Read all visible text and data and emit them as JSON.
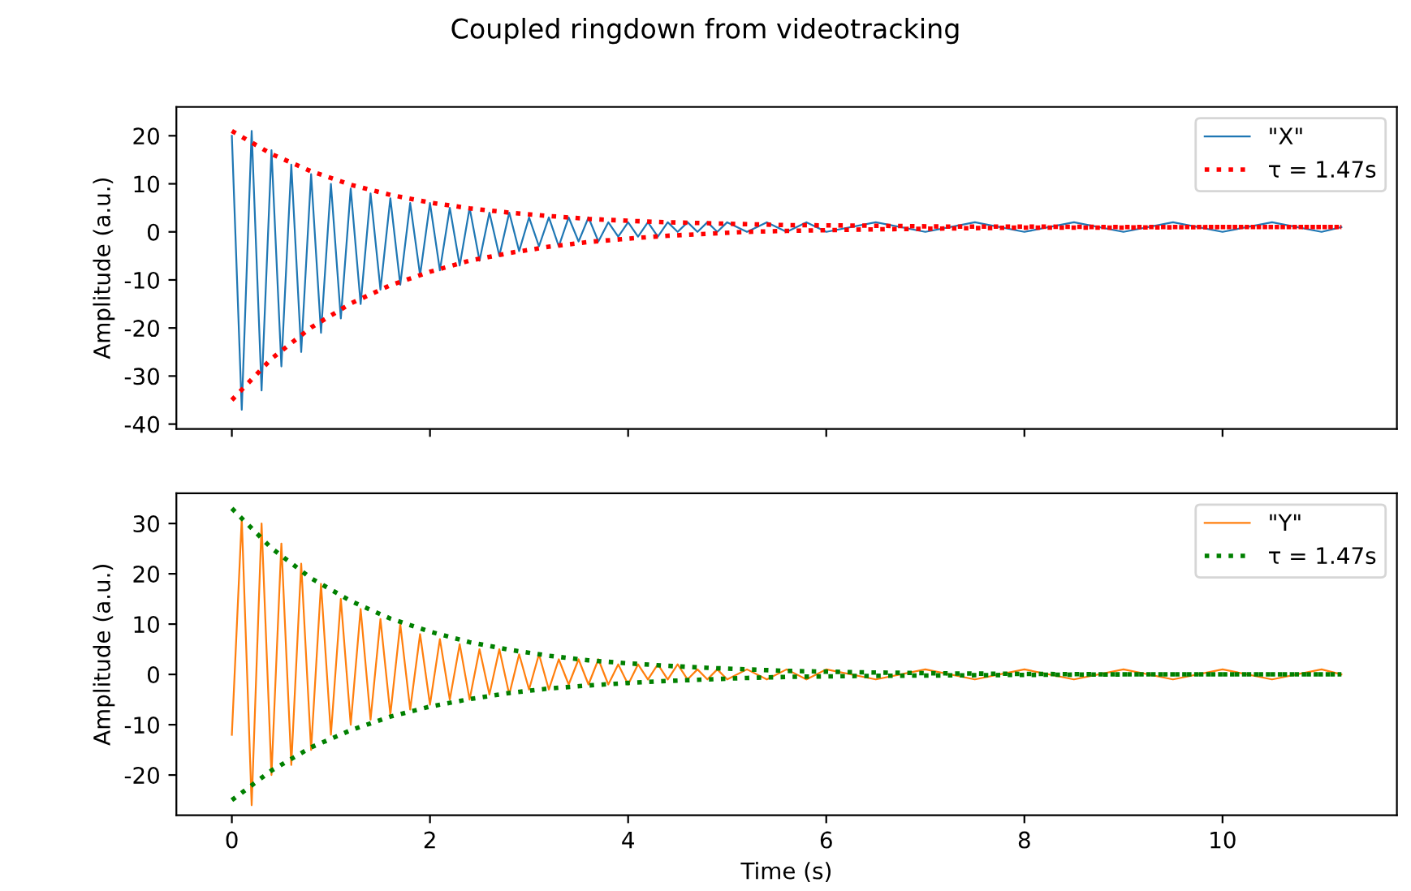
{
  "chart_data": [
    {
      "type": "line",
      "title": "Coupled ringdown from videotracking",
      "ylabel": "Amplitude (a.u.)",
      "xlim": [
        -0.56,
        11.76
      ],
      "xticks": [
        0,
        2,
        4,
        6,
        8,
        10
      ],
      "ylim": [
        -41,
        26
      ],
      "yticks": [
        -40,
        -30,
        -20,
        -10,
        0,
        10,
        20
      ],
      "tick_labels": "y",
      "legend": "top right",
      "grid": false,
      "series": [
        {
          "name": "\"X\"",
          "color": "#1f77b4",
          "line_style": "solid",
          "x": [
            0,
            0.1,
            0.2,
            0.3,
            0.4,
            0.5,
            0.6,
            0.7,
            0.8,
            0.9,
            1.0,
            1.1,
            1.2,
            1.3,
            1.4,
            1.5,
            1.6,
            1.7,
            1.8,
            1.9,
            2.0,
            2.1,
            2.2,
            2.3,
            2.4,
            2.5,
            2.6,
            2.7,
            2.8,
            2.9,
            3.0,
            3.1,
            3.2,
            3.3,
            3.4,
            3.5,
            3.6,
            3.7,
            3.8,
            3.9,
            4.0,
            4.1,
            4.2,
            4.3,
            4.4,
            4.5,
            4.6,
            4.7,
            4.8,
            4.9,
            5.0,
            5.2,
            5.4,
            5.6,
            5.8,
            6.0,
            6.5,
            7,
            7.5,
            8,
            8.5,
            9,
            9.5,
            10,
            10.5,
            11,
            11.2
          ],
          "values": [
            20,
            -37,
            21,
            -33,
            17,
            -28,
            14,
            -25,
            12,
            -21,
            10,
            -18,
            9,
            -15,
            8,
            -12,
            7,
            -11,
            6,
            -9,
            6,
            -8,
            5,
            -7,
            5,
            -6,
            4,
            -5,
            4,
            -4,
            3,
            -3,
            3,
            -3,
            3,
            -2,
            3,
            -2,
            2,
            -1,
            2,
            -1,
            2,
            -1,
            2,
            0,
            2,
            0,
            2,
            0,
            2,
            0,
            2,
            0,
            2,
            0,
            2,
            0,
            2,
            0,
            2,
            0,
            2,
            0,
            2,
            0,
            1
          ]
        },
        {
          "name": "τ = 1.47s",
          "color": "#ff0000",
          "line_style": "dotted",
          "x": [
            0,
            0.4,
            0.8,
            1.2,
            1.6,
            2.0,
            2.4,
            2.8,
            3.2,
            3.6,
            4.0,
            4.4,
            4.8,
            5.2,
            5.6,
            6.4,
            7.2,
            8,
            9,
            10,
            11.2
          ],
          "values": [
            21,
            16.2,
            12.6,
            9.8,
            7.7,
            6.1,
            4.9,
            4.0,
            3.3,
            2.7,
            2.3,
            2.0,
            1.8,
            1.6,
            1.4,
            1.3,
            1.1,
            1.1,
            1,
            1,
            1
          ]
        },
        {
          "color": "#ff0000",
          "line_style": "dotted",
          "x": [
            0,
            0.4,
            0.8,
            1.2,
            1.6,
            2.0,
            2.4,
            2.8,
            3.2,
            3.6,
            4.0,
            4.4,
            4.8,
            5.2,
            5.6,
            6.4,
            7.2,
            8,
            9,
            10,
            11.2
          ],
          "values": [
            -35,
            -26.4,
            -19.9,
            -14.9,
            -11.1,
            -8.3,
            -6.0,
            -4.4,
            -3.1,
            -2.1,
            -1.4,
            -0.8,
            -0.4,
            0,
            0.2,
            0.5,
            0.7,
            0.9,
            0.9,
            1,
            1
          ]
        }
      ]
    },
    {
      "type": "line",
      "xlabel": "Time (s)",
      "ylabel": "Amplitude (a.u.)",
      "xlim": [
        -0.56,
        11.76
      ],
      "xticks": [
        0,
        2,
        4,
        6,
        8,
        10
      ],
      "ylim": [
        -28,
        36
      ],
      "yticks": [
        -20,
        -10,
        0,
        10,
        20,
        30
      ],
      "legend": "top right",
      "grid": false,
      "series": [
        {
          "name": "\"Y\"",
          "color": "#ff7f0e",
          "line_style": "solid",
          "x": [
            0,
            0.1,
            0.2,
            0.3,
            0.4,
            0.5,
            0.6,
            0.7,
            0.8,
            0.9,
            1.0,
            1.1,
            1.2,
            1.3,
            1.4,
            1.5,
            1.6,
            1.7,
            1.8,
            1.9,
            2.0,
            2.1,
            2.2,
            2.3,
            2.4,
            2.5,
            2.6,
            2.7,
            2.8,
            2.9,
            3.0,
            3.1,
            3.2,
            3.3,
            3.4,
            3.5,
            3.6,
            3.7,
            3.8,
            3.9,
            4.0,
            4.1,
            4.2,
            4.3,
            4.4,
            4.5,
            4.6,
            4.7,
            4.8,
            4.9,
            5.0,
            5.2,
            5.4,
            5.6,
            5.8,
            6.0,
            6.5,
            7,
            7.5,
            8,
            8.5,
            9,
            9.5,
            10,
            10.5,
            11,
            11.2
          ],
          "values": [
            -12,
            31,
            -26,
            30,
            -20,
            26,
            -18,
            22,
            -15,
            18,
            -12,
            15,
            -10,
            13,
            -9,
            11,
            -8,
            10,
            -7,
            8,
            -6,
            7,
            -5,
            6,
            -5,
            5,
            -4,
            5,
            -4,
            4,
            -3,
            4,
            -3,
            3,
            -2,
            3,
            -2,
            3,
            -2,
            2,
            -2,
            2,
            -1,
            2,
            -1,
            2,
            -1,
            1,
            -1,
            1,
            -1,
            1,
            -1,
            1,
            -1,
            1,
            -1,
            1,
            -1,
            1,
            -1,
            1,
            -1,
            1,
            -1,
            1,
            0
          ]
        },
        {
          "name": "τ = 1.47s",
          "color": "#008000",
          "line_style": "dotted",
          "x": [
            0,
            0.4,
            0.8,
            1.2,
            1.6,
            2.0,
            2.4,
            2.8,
            3.2,
            3.6,
            4.0,
            4.4,
            4.8,
            5.2,
            5.6,
            6.4,
            7.2,
            8,
            9,
            10,
            11.2
          ],
          "values": [
            33,
            25.1,
            19.1,
            14.6,
            11.1,
            8.5,
            6.4,
            4.9,
            3.7,
            2.8,
            2.2,
            1.7,
            1.3,
            1.0,
            0.7,
            0.4,
            0.2,
            0.1,
            0,
            0,
            0
          ]
        },
        {
          "color": "#008000",
          "line_style": "dotted",
          "x": [
            0,
            0.4,
            0.8,
            1.2,
            1.6,
            2.0,
            2.4,
            2.8,
            3.2,
            3.6,
            4.0,
            4.4,
            4.8,
            5.2,
            5.6,
            6.4,
            7.2,
            8,
            9,
            10,
            11.2
          ],
          "values": [
            -25,
            -19.1,
            -14.5,
            -11.1,
            -8.4,
            -6.4,
            -4.9,
            -3.7,
            -2.8,
            -2.2,
            -1.7,
            -1.3,
            -1.0,
            -0.7,
            -0.5,
            -0.3,
            -0.2,
            -0.1,
            0,
            0,
            0
          ]
        }
      ]
    }
  ]
}
